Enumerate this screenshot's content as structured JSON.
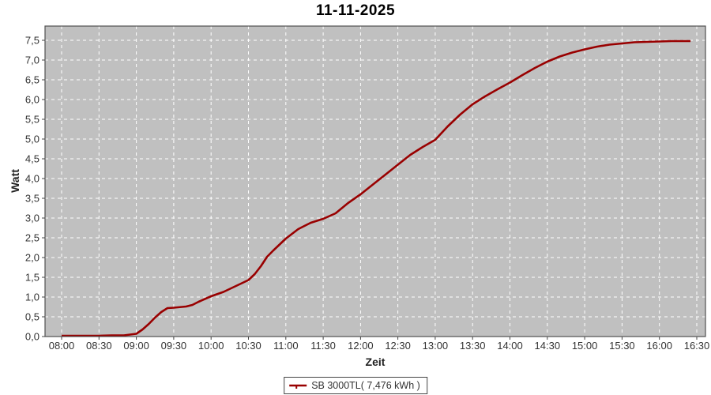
{
  "window": {
    "background": "#ffffff"
  },
  "chart_data": {
    "type": "line",
    "title": "11-11-2025",
    "xlabel": "Zeit",
    "ylabel": "Watt",
    "legend_position": "bottom",
    "plot_background": "#c0c0c0",
    "grid_color": "#ffffff",
    "grid_style": "dashed",
    "axis_color": "#444444",
    "x_ticks": [
      "08:00",
      "08:30",
      "09:00",
      "09:30",
      "10:00",
      "10:30",
      "11:00",
      "11:30",
      "12:00",
      "12:30",
      "13:00",
      "13:30",
      "14:00",
      "14:30",
      "15:00",
      "15:30",
      "16:00",
      "16:30"
    ],
    "y_ticks": [
      "0,0",
      "0,5",
      "1,0",
      "1,5",
      "2,0",
      "2,5",
      "3,0",
      "3,5",
      "4,0",
      "4,5",
      "5,0",
      "5,5",
      "6,0",
      "6,5",
      "7,0",
      "7,5"
    ],
    "ylim": [
      0,
      7.86
    ],
    "series": [
      {
        "name": "SB 3000TL( 7,476 kWh )",
        "color": "#990000",
        "points": [
          [
            "08:00",
            0.02
          ],
          [
            "08:10",
            0.02
          ],
          [
            "08:20",
            0.02
          ],
          [
            "08:30",
            0.02
          ],
          [
            "08:40",
            0.03
          ],
          [
            "08:50",
            0.03
          ],
          [
            "09:00",
            0.07
          ],
          [
            "09:05",
            0.18
          ],
          [
            "09:10",
            0.32
          ],
          [
            "09:15",
            0.48
          ],
          [
            "09:20",
            0.62
          ],
          [
            "09:25",
            0.72
          ],
          [
            "09:30",
            0.73
          ],
          [
            "09:40",
            0.76
          ],
          [
            "09:45",
            0.8
          ],
          [
            "09:50",
            0.88
          ],
          [
            "10:00",
            1.02
          ],
          [
            "10:10",
            1.13
          ],
          [
            "10:20",
            1.28
          ],
          [
            "10:30",
            1.43
          ],
          [
            "10:35",
            1.58
          ],
          [
            "10:40",
            1.78
          ],
          [
            "10:45",
            2.02
          ],
          [
            "10:50",
            2.18
          ],
          [
            "11:00",
            2.48
          ],
          [
            "11:10",
            2.72
          ],
          [
            "11:20",
            2.88
          ],
          [
            "11:30",
            2.98
          ],
          [
            "11:40",
            3.12
          ],
          [
            "11:50",
            3.38
          ],
          [
            "12:00",
            3.6
          ],
          [
            "12:10",
            3.85
          ],
          [
            "12:20",
            4.1
          ],
          [
            "12:30",
            4.35
          ],
          [
            "12:40",
            4.6
          ],
          [
            "12:50",
            4.8
          ],
          [
            "13:00",
            4.98
          ],
          [
            "13:10",
            5.32
          ],
          [
            "13:20",
            5.62
          ],
          [
            "13:30",
            5.88
          ],
          [
            "13:40",
            6.08
          ],
          [
            "13:50",
            6.26
          ],
          [
            "14:00",
            6.43
          ],
          [
            "14:10",
            6.62
          ],
          [
            "14:20",
            6.8
          ],
          [
            "14:30",
            6.96
          ],
          [
            "14:40",
            7.09
          ],
          [
            "14:50",
            7.19
          ],
          [
            "15:00",
            7.27
          ],
          [
            "15:10",
            7.34
          ],
          [
            "15:20",
            7.39
          ],
          [
            "15:30",
            7.42
          ],
          [
            "15:40",
            7.45
          ],
          [
            "15:50",
            7.46
          ],
          [
            "16:00",
            7.47
          ],
          [
            "16:10",
            7.48
          ],
          [
            "16:20",
            7.48
          ],
          [
            "16:25",
            7.48
          ]
        ]
      }
    ]
  }
}
